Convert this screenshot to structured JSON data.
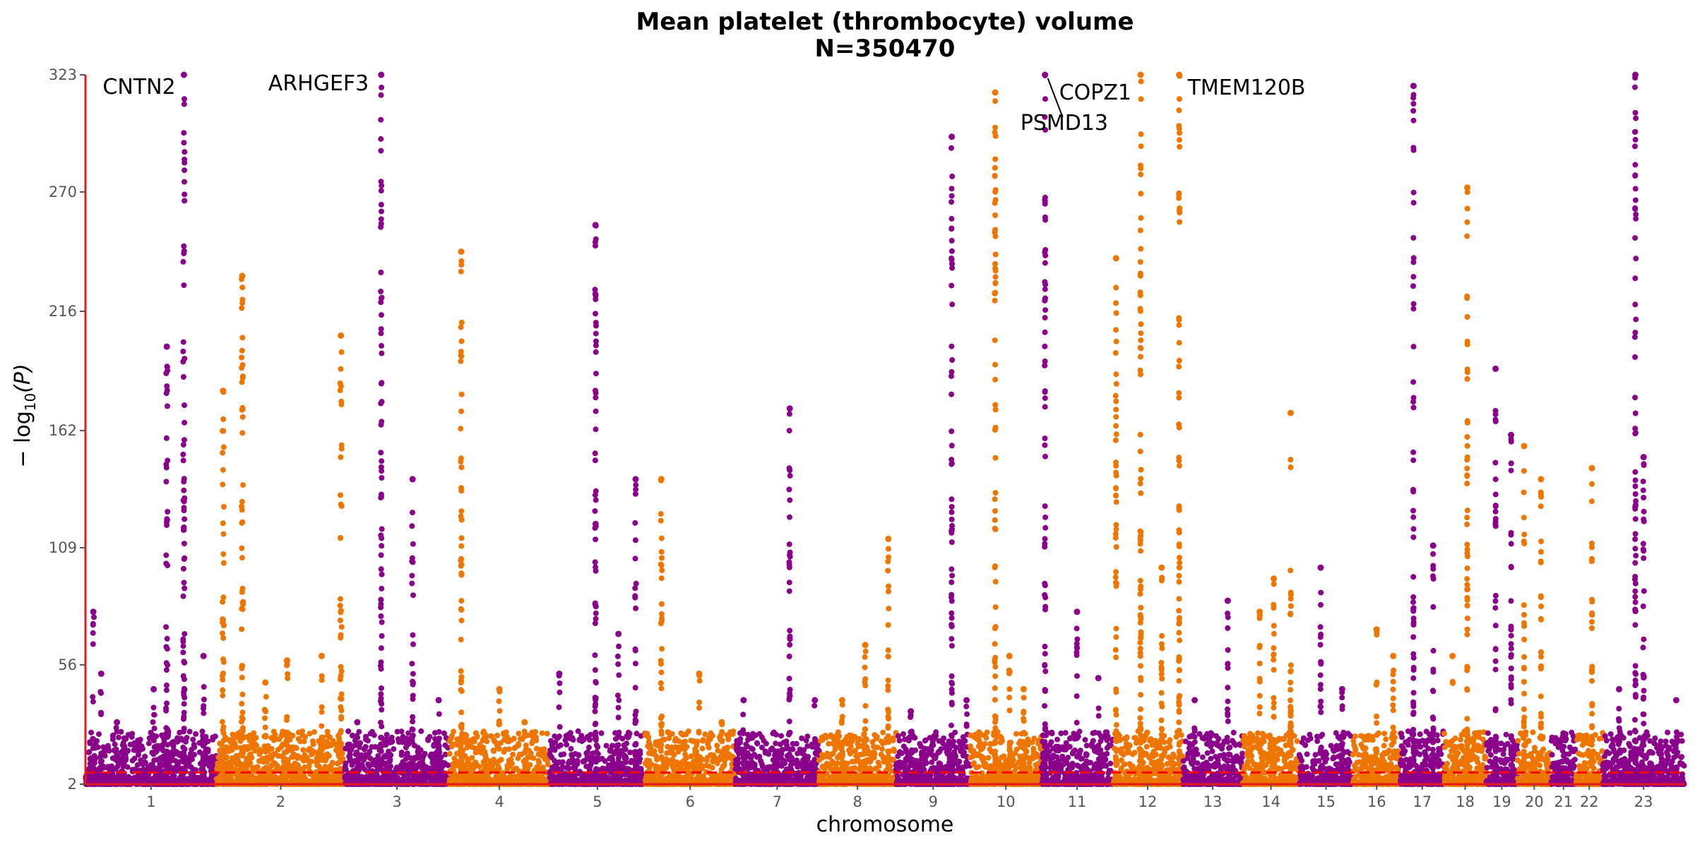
{
  "chart_data": {
    "type": "scatter",
    "title": "Mean platelet (thrombocyte) volume",
    "subtitle": "N=350470",
    "xlabel": "chromosome",
    "ylabel": "− log",
    "ylabel_sub": "10",
    "ylabel_tail": "(P)",
    "ylim": [
      2,
      323
    ],
    "yticks": [
      2,
      56,
      109,
      162,
      216,
      270,
      323
    ],
    "threshold": 7.3,
    "colors": {
      "odd": "#8b008b",
      "even": "#ee7600",
      "axis": "#e31a1c",
      "threshold": "#ff0000"
    },
    "chromosomes": [
      {
        "label": "1",
        "size": 249,
        "color": "odd",
        "peaks": [
          [
            0.06,
            80
          ],
          [
            0.12,
            52
          ],
          [
            0.24,
            30
          ],
          [
            0.52,
            45
          ],
          [
            0.62,
            200
          ],
          [
            0.75,
            323
          ],
          [
            0.9,
            60
          ]
        ]
      },
      {
        "label": "2",
        "size": 243,
        "color": "even",
        "peaks": [
          [
            0.05,
            180
          ],
          [
            0.2,
            232
          ],
          [
            0.38,
            48
          ],
          [
            0.55,
            58
          ],
          [
            0.82,
            60
          ],
          [
            0.97,
            205
          ]
        ]
      },
      {
        "label": "3",
        "size": 198,
        "color": "odd",
        "peaks": [
          [
            0.12,
            30
          ],
          [
            0.35,
            323
          ],
          [
            0.65,
            140
          ],
          [
            0.9,
            40
          ]
        ]
      },
      {
        "label": "4",
        "size": 191,
        "color": "even",
        "peaks": [
          [
            0.12,
            243
          ],
          [
            0.5,
            45
          ],
          [
            0.75,
            30
          ]
        ]
      },
      {
        "label": "5",
        "size": 181,
        "color": "odd",
        "peaks": [
          [
            0.1,
            52
          ],
          [
            0.48,
            255
          ],
          [
            0.72,
            70
          ],
          [
            0.9,
            140
          ]
        ]
      },
      {
        "label": "6",
        "size": 171,
        "color": "even",
        "peaks": [
          [
            0.18,
            140
          ],
          [
            0.6,
            52
          ],
          [
            0.85,
            30
          ]
        ]
      },
      {
        "label": "7",
        "size": 159,
        "color": "odd",
        "peaks": [
          [
            0.1,
            40
          ],
          [
            0.65,
            172
          ],
          [
            0.95,
            40
          ]
        ]
      },
      {
        "label": "8",
        "size": 146,
        "color": "even",
        "peaks": [
          [
            0.3,
            40
          ],
          [
            0.6,
            65
          ],
          [
            0.9,
            113
          ]
        ]
      },
      {
        "label": "9",
        "size": 141,
        "color": "odd",
        "peaks": [
          [
            0.2,
            35
          ],
          [
            0.75,
            295
          ],
          [
            0.95,
            40
          ]
        ]
      },
      {
        "label": "10",
        "size": 135,
        "color": "even",
        "peaks": [
          [
            0.35,
            315
          ],
          [
            0.55,
            60
          ],
          [
            0.75,
            45
          ]
        ]
      },
      {
        "label": "11",
        "size": 135,
        "color": "odd",
        "peaks": [
          [
            0.05,
            323
          ],
          [
            0.5,
            80
          ],
          [
            0.8,
            50
          ]
        ]
      },
      {
        "label": "12",
        "size": 133,
        "color": "even",
        "peaks": [
          [
            0.05,
            240
          ],
          [
            0.4,
            323
          ],
          [
            0.7,
            100
          ],
          [
            0.95,
            323
          ]
        ]
      },
      {
        "label": "13",
        "size": 114,
        "color": "odd",
        "peaks": [
          [
            0.2,
            40
          ],
          [
            0.75,
            85
          ]
        ]
      },
      {
        "label": "14",
        "size": 107,
        "color": "even",
        "peaks": [
          [
            0.3,
            80
          ],
          [
            0.55,
            95
          ],
          [
            0.85,
            170
          ]
        ]
      },
      {
        "label": "15",
        "size": 102,
        "color": "odd",
        "peaks": [
          [
            0.4,
            100
          ],
          [
            0.8,
            45
          ]
        ]
      },
      {
        "label": "16",
        "size": 90,
        "color": "even",
        "peaks": [
          [
            0.5,
            72
          ],
          [
            0.85,
            60
          ]
        ]
      },
      {
        "label": "17",
        "size": 83,
        "color": "odd",
        "peaks": [
          [
            0.3,
            318
          ],
          [
            0.75,
            110
          ]
        ]
      },
      {
        "label": "18",
        "size": 80,
        "color": "even",
        "peaks": [
          [
            0.2,
            60
          ],
          [
            0.55,
            272
          ]
        ]
      },
      {
        "label": "19",
        "size": 59,
        "color": "odd",
        "peaks": [
          [
            0.3,
            190
          ],
          [
            0.8,
            160
          ]
        ]
      },
      {
        "label": "20",
        "size": 64,
        "color": "even",
        "peaks": [
          [
            0.2,
            155
          ],
          [
            0.7,
            140
          ]
        ]
      },
      {
        "label": "21",
        "size": 47,
        "color": "odd",
        "peaks": [
          [
            0.5,
            25
          ]
        ]
      },
      {
        "label": "22",
        "size": 51,
        "color": "even",
        "peaks": [
          [
            0.6,
            145
          ]
        ]
      },
      {
        "label": "23",
        "size": 155,
        "color": "odd",
        "peaks": [
          [
            0.2,
            45
          ],
          [
            0.4,
            323
          ],
          [
            0.5,
            150
          ],
          [
            0.9,
            40
          ]
        ]
      }
    ],
    "annotations": [
      {
        "text": "CNTN2",
        "chr": 0,
        "pos": 0.75
      },
      {
        "text": "ARHGEF3",
        "chr": 2,
        "pos": 0.35
      },
      {
        "text": "COPZ1",
        "chr": 10,
        "pos": 0.05
      },
      {
        "text": "PSMD13",
        "chr": 10,
        "pos": 0.05
      },
      {
        "text": "TMEM120B",
        "chr": 11,
        "pos": 0.95
      }
    ]
  }
}
